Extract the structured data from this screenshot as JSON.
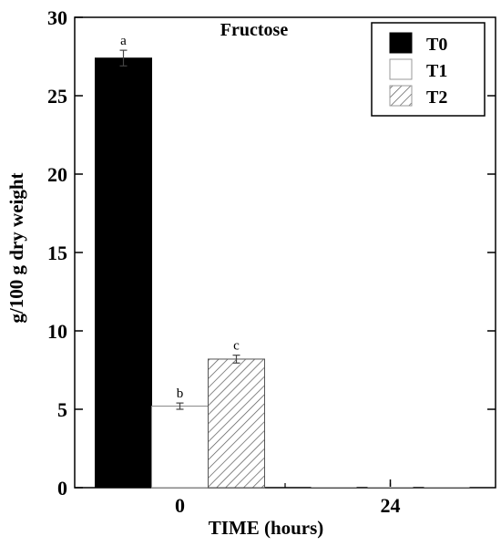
{
  "chart_data": {
    "type": "bar",
    "title": "Fructose",
    "xlabel": "TIME (hours)",
    "ylabel": "g/100 g dry weight",
    "categories": [
      "0",
      "24"
    ],
    "ylim": [
      0,
      30
    ],
    "yticks": [
      0,
      5,
      10,
      15,
      20,
      25,
      30
    ],
    "legend_position": "top-right",
    "grid": false,
    "series": [
      {
        "name": "T0",
        "values": [
          27.4,
          0
        ],
        "errors": [
          0.5,
          0
        ],
        "labels": [
          "a",
          ""
        ],
        "color": "#000000",
        "fill": "solid"
      },
      {
        "name": "T1",
        "values": [
          5.2,
          0
        ],
        "errors": [
          0.2,
          0
        ],
        "labels": [
          "b",
          ""
        ],
        "color": "#ffffff",
        "fill": "solid"
      },
      {
        "name": "T2",
        "values": [
          8.2,
          0
        ],
        "errors": [
          0.25,
          0
        ],
        "labels": [
          "c",
          ""
        ],
        "color": "#ffffff",
        "fill": "hatch"
      }
    ]
  }
}
